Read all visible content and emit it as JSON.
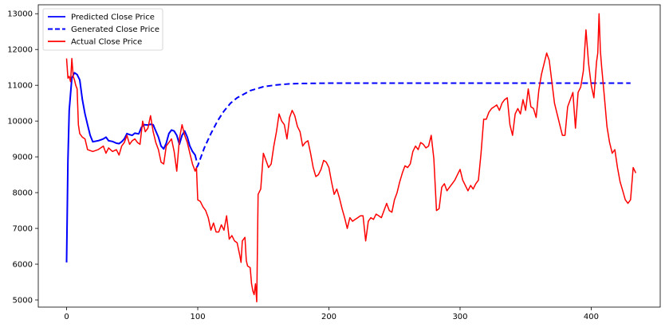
{
  "chart_data": {
    "type": "line",
    "title": "",
    "xlabel": "",
    "ylabel": "",
    "xlim": [
      -21.6,
      452.6
    ],
    "ylim": [
      4800,
      13250
    ],
    "x_ticks": [
      0,
      100,
      200,
      300,
      400
    ],
    "y_ticks": [
      5000,
      6000,
      7000,
      8000,
      9000,
      10000,
      11000,
      12000,
      13000
    ],
    "grid": false,
    "legend_position": "top-left",
    "series": [
      {
        "name": "Predicted Close Price",
        "color": "#0000ff",
        "style": "solid",
        "points": [
          [
            0,
            6050
          ],
          [
            1,
            8900
          ],
          [
            2,
            10300
          ],
          [
            4,
            11200
          ],
          [
            6,
            11350
          ],
          [
            8,
            11300
          ],
          [
            10,
            11150
          ],
          [
            12,
            10600
          ],
          [
            14,
            10200
          ],
          [
            16,
            9900
          ],
          [
            18,
            9600
          ],
          [
            20,
            9420
          ],
          [
            24,
            9450
          ],
          [
            28,
            9500
          ],
          [
            30,
            9550
          ],
          [
            32,
            9450
          ],
          [
            35,
            9430
          ],
          [
            38,
            9380
          ],
          [
            40,
            9370
          ],
          [
            42,
            9420
          ],
          [
            44,
            9500
          ],
          [
            46,
            9650
          ],
          [
            48,
            9620
          ],
          [
            50,
            9600
          ],
          [
            52,
            9660
          ],
          [
            55,
            9640
          ],
          [
            57,
            9820
          ],
          [
            59,
            9900
          ],
          [
            62,
            9890
          ],
          [
            64,
            9910
          ],
          [
            66,
            9900
          ],
          [
            68,
            9720
          ],
          [
            70,
            9550
          ],
          [
            72,
            9300
          ],
          [
            74,
            9220
          ],
          [
            76,
            9380
          ],
          [
            78,
            9650
          ],
          [
            80,
            9750
          ],
          [
            82,
            9720
          ],
          [
            84,
            9600
          ],
          [
            86,
            9350
          ],
          [
            88,
            9600
          ],
          [
            90,
            9720
          ],
          [
            92,
            9550
          ],
          [
            94,
            9300
          ],
          [
            96,
            9150
          ],
          [
            98,
            9050
          ],
          [
            99,
            8900
          ]
        ]
      },
      {
        "name": "Generated Close Price",
        "color": "#0000ff",
        "style": "dashed",
        "points": [
          [
            99,
            8700
          ],
          [
            100,
            8750
          ],
          [
            105,
            9250
          ],
          [
            110,
            9650
          ],
          [
            115,
            10000
          ],
          [
            120,
            10280
          ],
          [
            125,
            10500
          ],
          [
            130,
            10650
          ],
          [
            140,
            10850
          ],
          [
            150,
            10960
          ],
          [
            160,
            11010
          ],
          [
            170,
            11040
          ],
          [
            180,
            11050
          ],
          [
            200,
            11060
          ],
          [
            250,
            11060
          ],
          [
            300,
            11060
          ],
          [
            350,
            11060
          ],
          [
            400,
            11060
          ],
          [
            430,
            11060
          ]
        ]
      },
      {
        "name": "Actual Close Price",
        "color": "#ff0000",
        "style": "solid",
        "points": [
          [
            0,
            11750
          ],
          [
            1,
            11200
          ],
          [
            2,
            11250
          ],
          [
            3,
            11100
          ],
          [
            4,
            11750
          ],
          [
            5,
            11250
          ],
          [
            6,
            11150
          ],
          [
            7,
            11000
          ],
          [
            8,
            10900
          ],
          [
            9,
            9900
          ],
          [
            10,
            9650
          ],
          [
            12,
            9550
          ],
          [
            14,
            9500
          ],
          [
            16,
            9200
          ],
          [
            20,
            9150
          ],
          [
            24,
            9200
          ],
          [
            26,
            9250
          ],
          [
            28,
            9300
          ],
          [
            30,
            9100
          ],
          [
            32,
            9250
          ],
          [
            35,
            9150
          ],
          [
            38,
            9200
          ],
          [
            40,
            9050
          ],
          [
            42,
            9300
          ],
          [
            44,
            9400
          ],
          [
            46,
            9600
          ],
          [
            48,
            9350
          ],
          [
            50,
            9450
          ],
          [
            52,
            9500
          ],
          [
            54,
            9400
          ],
          [
            56,
            9350
          ],
          [
            58,
            10000
          ],
          [
            60,
            9700
          ],
          [
            62,
            9800
          ],
          [
            64,
            10150
          ],
          [
            66,
            9700
          ],
          [
            68,
            9400
          ],
          [
            70,
            9200
          ],
          [
            72,
            8850
          ],
          [
            74,
            8800
          ],
          [
            76,
            9300
          ],
          [
            78,
            9400
          ],
          [
            80,
            9500
          ],
          [
            82,
            9150
          ],
          [
            84,
            8600
          ],
          [
            86,
            9500
          ],
          [
            88,
            9900
          ],
          [
            90,
            9600
          ],
          [
            92,
            9400
          ],
          [
            94,
            9100
          ],
          [
            96,
            8800
          ],
          [
            98,
            8600
          ],
          [
            99,
            8700
          ],
          [
            100,
            7800
          ],
          [
            102,
            7750
          ],
          [
            104,
            7600
          ],
          [
            106,
            7500
          ],
          [
            108,
            7300
          ],
          [
            110,
            6950
          ],
          [
            112,
            7150
          ],
          [
            114,
            6900
          ],
          [
            116,
            6900
          ],
          [
            118,
            7100
          ],
          [
            120,
            6950
          ],
          [
            122,
            7350
          ],
          [
            124,
            6700
          ],
          [
            126,
            6800
          ],
          [
            128,
            6650
          ],
          [
            130,
            6600
          ],
          [
            132,
            6250
          ],
          [
            133,
            6050
          ],
          [
            134,
            6650
          ],
          [
            136,
            6750
          ],
          [
            137,
            6100
          ],
          [
            138,
            5950
          ],
          [
            140,
            5900
          ],
          [
            141,
            5450
          ],
          [
            142,
            5250
          ],
          [
            143,
            5150
          ],
          [
            144,
            5450
          ],
          [
            145,
            4950
          ],
          [
            146,
            7950
          ],
          [
            148,
            8100
          ],
          [
            150,
            9100
          ],
          [
            152,
            8900
          ],
          [
            154,
            8700
          ],
          [
            156,
            8800
          ],
          [
            158,
            9300
          ],
          [
            160,
            9700
          ],
          [
            162,
            10200
          ],
          [
            164,
            10000
          ],
          [
            166,
            9900
          ],
          [
            168,
            9500
          ],
          [
            170,
            10100
          ],
          [
            172,
            10300
          ],
          [
            174,
            10150
          ],
          [
            176,
            9850
          ],
          [
            178,
            9700
          ],
          [
            180,
            9300
          ],
          [
            182,
            9400
          ],
          [
            184,
            9450
          ],
          [
            186,
            9100
          ],
          [
            188,
            8700
          ],
          [
            190,
            8450
          ],
          [
            192,
            8500
          ],
          [
            194,
            8650
          ],
          [
            196,
            8900
          ],
          [
            198,
            8850
          ],
          [
            200,
            8700
          ],
          [
            202,
            8300
          ],
          [
            204,
            7950
          ],
          [
            206,
            8100
          ],
          [
            208,
            7850
          ],
          [
            210,
            7550
          ],
          [
            212,
            7300
          ],
          [
            214,
            7000
          ],
          [
            216,
            7300
          ],
          [
            218,
            7200
          ],
          [
            220,
            7250
          ],
          [
            222,
            7300
          ],
          [
            224,
            7350
          ],
          [
            226,
            7350
          ],
          [
            228,
            6650
          ],
          [
            230,
            7200
          ],
          [
            232,
            7300
          ],
          [
            234,
            7250
          ],
          [
            236,
            7400
          ],
          [
            238,
            7350
          ],
          [
            240,
            7300
          ],
          [
            242,
            7500
          ],
          [
            244,
            7700
          ],
          [
            246,
            7500
          ],
          [
            248,
            7450
          ],
          [
            250,
            7800
          ],
          [
            252,
            8000
          ],
          [
            254,
            8300
          ],
          [
            256,
            8550
          ],
          [
            258,
            8750
          ],
          [
            260,
            8700
          ],
          [
            262,
            8800
          ],
          [
            264,
            9150
          ],
          [
            266,
            9300
          ],
          [
            268,
            9200
          ],
          [
            270,
            9400
          ],
          [
            272,
            9350
          ],
          [
            274,
            9250
          ],
          [
            276,
            9300
          ],
          [
            278,
            9600
          ],
          [
            280,
            8950
          ],
          [
            282,
            7500
          ],
          [
            284,
            7550
          ],
          [
            286,
            8150
          ],
          [
            288,
            8250
          ],
          [
            290,
            8050
          ],
          [
            292,
            8150
          ],
          [
            294,
            8250
          ],
          [
            296,
            8350
          ],
          [
            298,
            8500
          ],
          [
            300,
            8650
          ],
          [
            302,
            8350
          ],
          [
            304,
            8200
          ],
          [
            306,
            8050
          ],
          [
            308,
            8200
          ],
          [
            310,
            8100
          ],
          [
            312,
            8250
          ],
          [
            314,
            8350
          ],
          [
            316,
            9100
          ],
          [
            318,
            10050
          ],
          [
            320,
            10050
          ],
          [
            322,
            10250
          ],
          [
            324,
            10350
          ],
          [
            326,
            10400
          ],
          [
            328,
            10450
          ],
          [
            330,
            10300
          ],
          [
            332,
            10500
          ],
          [
            334,
            10600
          ],
          [
            336,
            10650
          ],
          [
            338,
            9900
          ],
          [
            340,
            9600
          ],
          [
            342,
            10200
          ],
          [
            344,
            10350
          ],
          [
            346,
            10200
          ],
          [
            348,
            10600
          ],
          [
            350,
            10300
          ],
          [
            352,
            10900
          ],
          [
            354,
            10400
          ],
          [
            356,
            10350
          ],
          [
            358,
            10100
          ],
          [
            360,
            10850
          ],
          [
            362,
            11300
          ],
          [
            364,
            11600
          ],
          [
            366,
            11900
          ],
          [
            368,
            11700
          ],
          [
            370,
            11100
          ],
          [
            372,
            10500
          ],
          [
            374,
            10200
          ],
          [
            376,
            9900
          ],
          [
            378,
            9600
          ],
          [
            380,
            9600
          ],
          [
            382,
            10400
          ],
          [
            384,
            10600
          ],
          [
            386,
            10800
          ],
          [
            388,
            9800
          ],
          [
            390,
            10800
          ],
          [
            392,
            10950
          ],
          [
            394,
            11400
          ],
          [
            395,
            12000
          ],
          [
            396,
            12550
          ],
          [
            398,
            11600
          ],
          [
            400,
            11000
          ],
          [
            402,
            10650
          ],
          [
            404,
            11650
          ],
          [
            405,
            11900
          ],
          [
            406,
            13000
          ],
          [
            407,
            11950
          ],
          [
            408,
            11500
          ],
          [
            410,
            10700
          ],
          [
            412,
            9850
          ],
          [
            414,
            9400
          ],
          [
            416,
            9100
          ],
          [
            418,
            9200
          ],
          [
            420,
            8700
          ],
          [
            422,
            8300
          ],
          [
            424,
            8050
          ],
          [
            426,
            7800
          ],
          [
            428,
            7700
          ],
          [
            430,
            7800
          ],
          [
            432,
            8700
          ],
          [
            434,
            8550
          ]
        ]
      }
    ]
  }
}
